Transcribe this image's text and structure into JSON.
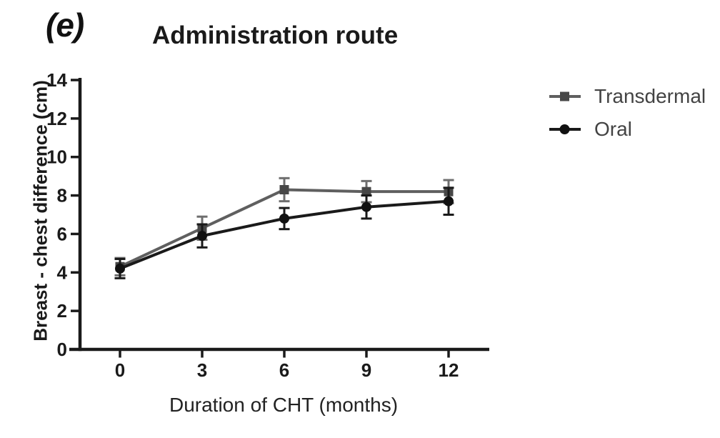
{
  "figure": {
    "panel_label": "(e)"
  },
  "chart_data": {
    "type": "line",
    "title": "Administration route",
    "xlabel": "Duration of CHT (months)",
    "ylabel": "Breast - chest difference (cm)",
    "x": [
      0,
      3,
      6,
      9,
      12
    ],
    "xticks": [
      0,
      3,
      6,
      9,
      12
    ],
    "yticks": [
      0,
      2,
      4,
      6,
      8,
      10,
      12,
      14
    ],
    "ylim": [
      0,
      14
    ],
    "grid": false,
    "legend_position": "right",
    "error_bars": true,
    "series": [
      {
        "name": "Transdermal",
        "marker": "square",
        "color": "#5f5f5f",
        "marker_color": "#474747",
        "error_color": "#6e6e6e",
        "values": [
          4.3,
          6.3,
          8.3,
          8.2,
          8.2
        ],
        "errors": [
          0.45,
          0.6,
          0.6,
          0.55,
          0.6
        ]
      },
      {
        "name": "Oral",
        "marker": "circle",
        "color": "#1a1a1a",
        "marker_color": "#111111",
        "error_color": "#1a1a1a",
        "values": [
          4.2,
          5.9,
          6.8,
          7.4,
          7.7
        ],
        "errors": [
          0.5,
          0.6,
          0.55,
          0.6,
          0.7
        ]
      }
    ]
  }
}
